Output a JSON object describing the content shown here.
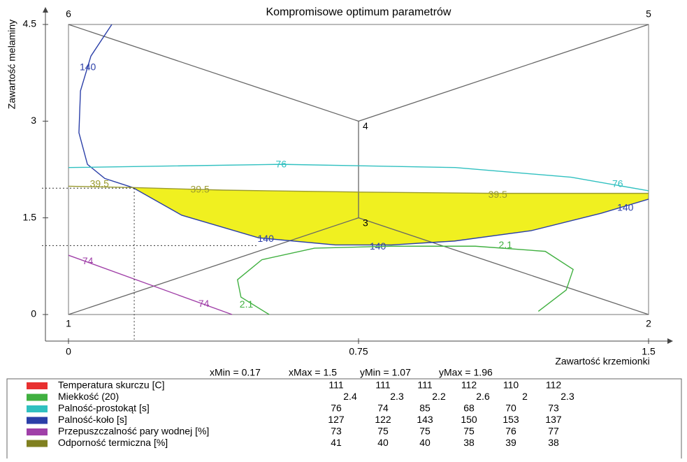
{
  "chart_data": {
    "type": "contour",
    "title": "Kompromisowe optimum parametrów",
    "xlabel": "Zawartość krzemionki",
    "ylabel": "Zawartość melaminy",
    "xlim": [
      0,
      1.5
    ],
    "ylim": [
      0,
      4.5
    ],
    "xticks": [
      0,
      0.75,
      1.5
    ],
    "yticks": [
      0,
      1.5,
      3,
      4.5
    ],
    "vertices": [
      {
        "label": "1",
        "x": 0,
        "y": 0
      },
      {
        "label": "2",
        "x": 1.5,
        "y": 0
      },
      {
        "label": "3",
        "x": 0.75,
        "y": 1.5
      },
      {
        "label": "4",
        "x": 0.75,
        "y": 3
      },
      {
        "label": "5",
        "x": 1.5,
        "y": 4.5
      },
      {
        "label": "6",
        "x": 0,
        "y": 4.5
      }
    ],
    "limits": [
      {
        "label": "xMin =",
        "value": 0.17
      },
      {
        "label": "xMax =",
        "value": 1.5
      },
      {
        "label": "yMin =",
        "value": 1.07
      },
      {
        "label": "yMax =",
        "value": 1.96
      }
    ],
    "region_color": "#f0f020",
    "contours": [
      {
        "level": 140,
        "color": "#2b3fa8",
        "x": [
          0.112,
          0.058,
          0.031,
          0.027,
          0.049,
          0.094,
          0.166,
          0.293,
          0.492,
          0.69,
          0.835,
          0.998,
          1.196,
          1.377,
          1.5
        ],
        "y": [
          4.5,
          4.01,
          3.47,
          2.82,
          2.33,
          2.11,
          1.97,
          1.54,
          1.19,
          1.08,
          1.08,
          1.14,
          1.3,
          1.57,
          1.79
        ]
      },
      {
        "level": 39.5,
        "color": "#9a9a30",
        "x": [
          0,
          0.166,
          0.4,
          0.75,
          1.1,
          1.5
        ],
        "y": [
          1.99,
          1.97,
          1.93,
          1.9,
          1.88,
          1.88
        ]
      },
      {
        "level": 76,
        "color": "#30c0c0",
        "x": [
          0,
          0.55,
          1.0,
          1.3,
          1.5
        ],
        "y": [
          2.28,
          2.33,
          2.28,
          2.13,
          1.92
        ]
      },
      {
        "level": 74,
        "color": "#a040a8",
        "x": [
          0,
          0.423
        ],
        "y": [
          0.92,
          0
        ]
      },
      {
        "level": 2.1,
        "color": "#40b040",
        "x": [
          0.519,
          0.446,
          0.437,
          0.5,
          0.636,
          0.835,
          1.052,
          1.233,
          1.305,
          1.287,
          1.215
        ],
        "y": [
          0,
          0.27,
          0.54,
          0.85,
          1.03,
          1.06,
          1.06,
          0.98,
          0.7,
          0.38,
          0.05
        ]
      }
    ],
    "series": [
      {
        "name": "Temperatura skurczu [C]",
        "color": "#e83030",
        "values": [
          111,
          111,
          111,
          112,
          110,
          112
        ]
      },
      {
        "name": "Miekkość (20)",
        "color": "#40b040",
        "values": [
          2.4,
          2.3,
          2.2,
          2.6,
          2,
          2.3
        ]
      },
      {
        "name": "Palność-prostokąt [s]",
        "color": "#30c0c0",
        "values": [
          76,
          74,
          85,
          68,
          70,
          73
        ]
      },
      {
        "name": "Palność-koło [s]",
        "color": "#2b3fa8",
        "values": [
          127,
          122,
          143,
          150,
          153,
          137
        ]
      },
      {
        "name": "Przepuszczalność pary wodnej [%]",
        "color": "#a040a8",
        "values": [
          73,
          75,
          75,
          75,
          76,
          77
        ]
      },
      {
        "name": "Odporność termiczna [%]",
        "color": "#808020",
        "values": [
          41,
          40,
          40,
          38,
          39,
          38
        ]
      }
    ]
  }
}
